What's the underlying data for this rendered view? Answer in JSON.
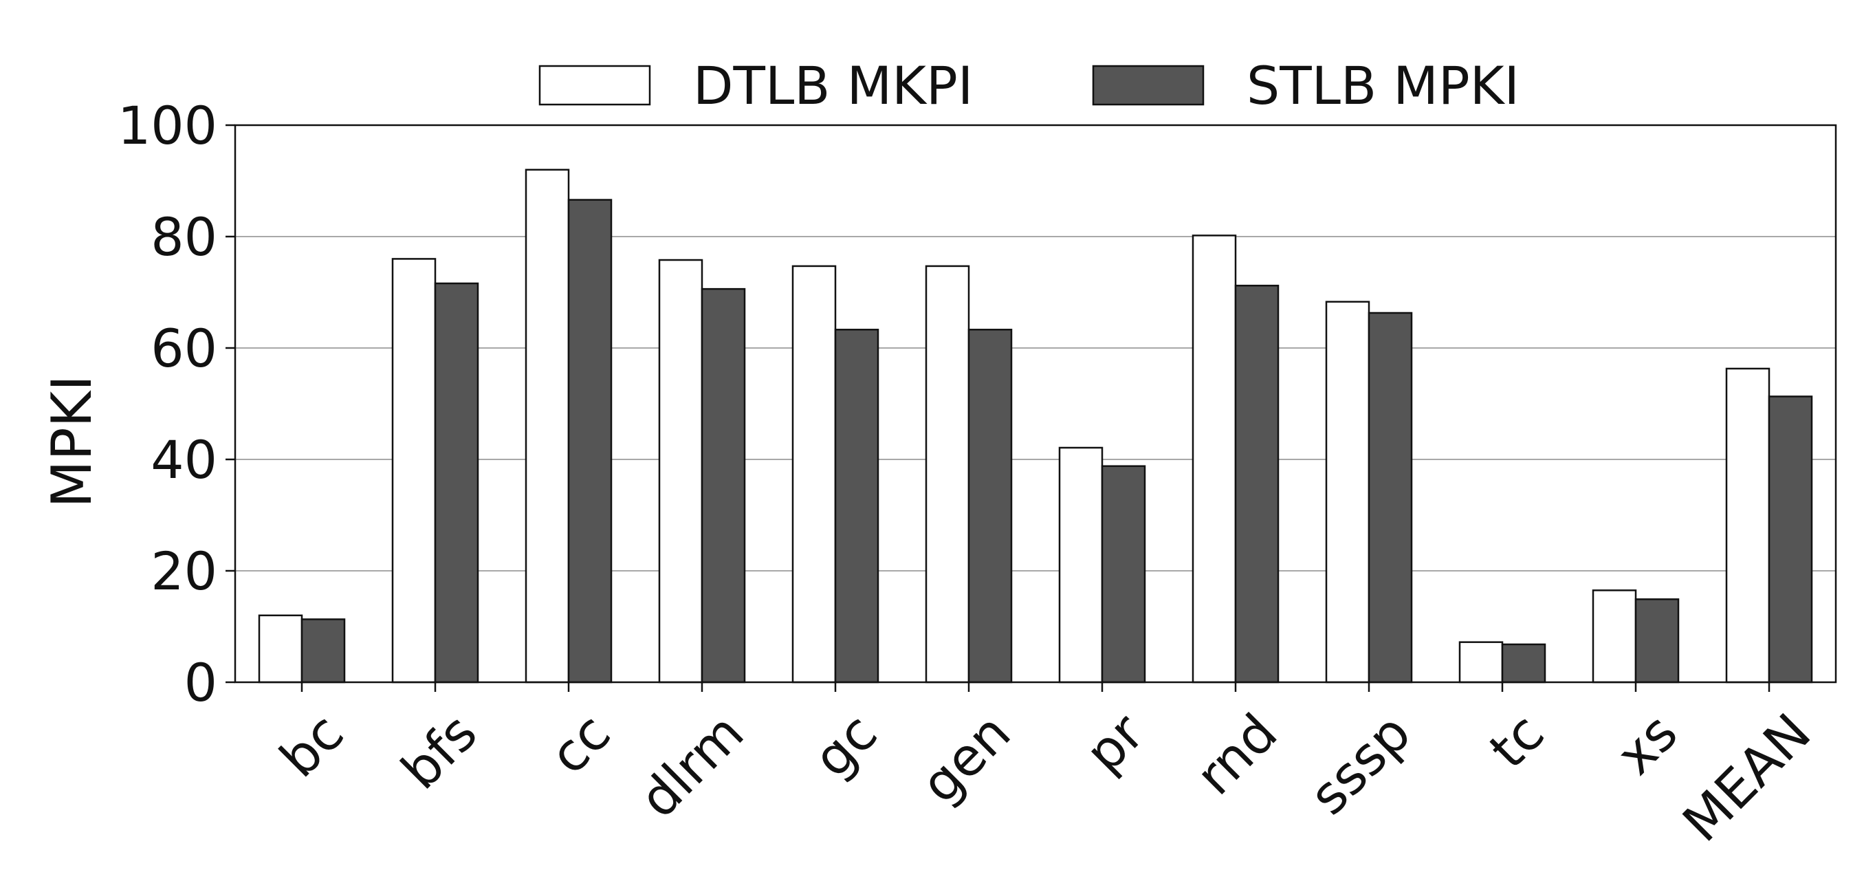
{
  "chart_data": {
    "type": "bar",
    "title": "",
    "xlabel": "",
    "ylabel": "MPKI",
    "ylim": [
      0,
      100
    ],
    "yticks": [
      "0",
      "20",
      "40",
      "60",
      "80",
      "100"
    ],
    "grid": "horizontal",
    "legend_position": "top-center",
    "categories": [
      "bc",
      "bfs",
      "cc",
      "dlrm",
      "gc",
      "gen",
      "pr",
      "rnd",
      "sssp",
      "tc",
      "xs",
      "MEAN"
    ],
    "series": [
      {
        "name": "DTLB MKPI",
        "color": "#ffffff",
        "values": [
          12.0,
          76.0,
          92.0,
          75.8,
          74.7,
          74.7,
          42.1,
          80.2,
          68.3,
          7.2,
          16.5,
          56.3
        ]
      },
      {
        "name": "STLB MPKI",
        "color": "#555555",
        "values": [
          11.3,
          71.6,
          86.6,
          70.6,
          63.3,
          63.3,
          38.8,
          71.2,
          66.3,
          6.8,
          14.9,
          51.3
        ]
      }
    ]
  }
}
